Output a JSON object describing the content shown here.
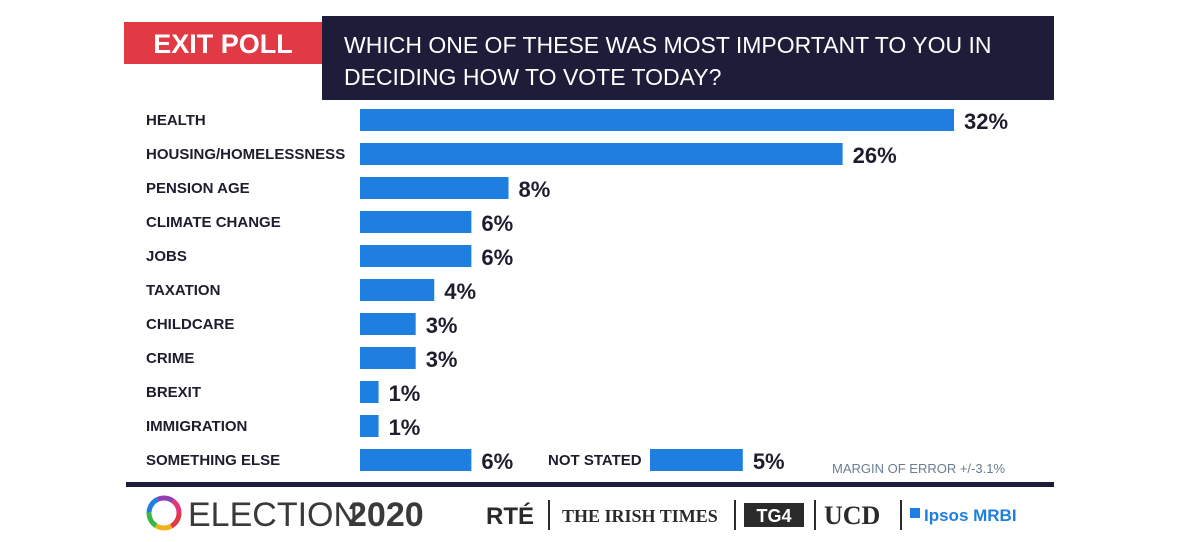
{
  "header": {
    "tag": "EXIT POLL",
    "question_line1": "WHICH ONE OF THESE WAS MOST IMPORTANT TO YOU IN",
    "question_line2": "DECIDING HOW TO VOTE TODAY?",
    "tag_color": "#e23a45",
    "question_bg": "#1d1d3a"
  },
  "chart_data": {
    "type": "bar",
    "orientation": "horizontal",
    "title": "WHICH ONE OF THESE WAS MOST IMPORTANT TO YOU IN DECIDING HOW TO VOTE TODAY?",
    "categories": [
      "HEALTH",
      "HOUSING/HOMELESSNESS",
      "PENSION AGE",
      "CLIMATE CHANGE",
      "JOBS",
      "TAXATION",
      "CHILDCARE",
      "CRIME",
      "BREXIT",
      "IMMIGRATION",
      "SOMETHING ELSE"
    ],
    "values": [
      32,
      26,
      8,
      6,
      6,
      4,
      3,
      3,
      1,
      1,
      6
    ],
    "value_labels": [
      "32%",
      "26%",
      "8%",
      "6%",
      "6%",
      "4%",
      "3%",
      "3%",
      "1%",
      "1%",
      "6%"
    ],
    "extra_item": {
      "label": "NOT STATED",
      "value": 5,
      "value_label": "5%"
    },
    "xlim": [
      0,
      32
    ],
    "grid": false,
    "bar_color": "#1e7fe0",
    "annotation": "MARGIN OF ERROR +/-3.1%"
  },
  "footer": {
    "brand_word": "ELECTION",
    "brand_year": "2020",
    "partners": [
      "RTÉ",
      "THE IRISH TIMES",
      "TG4",
      "UCD",
      "Ipsos MRBI"
    ],
    "rule_color": "#1d1d3a"
  }
}
